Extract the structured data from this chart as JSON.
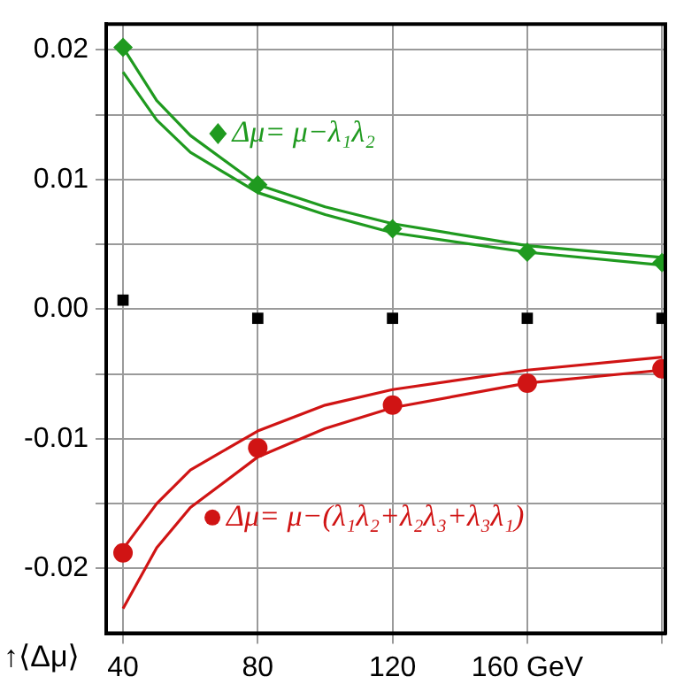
{
  "chart_data": {
    "type": "line",
    "ylabel": "↑⟨Δμ⟩",
    "xlim": [
      35,
      201
    ],
    "ylim": [
      -0.025,
      0.022
    ],
    "xticks": [
      40,
      80,
      120,
      {
        "value": 160,
        "label": "160 GeV"
      },
      {
        "value": 200,
        "label": null
      }
    ],
    "yticks": [
      {
        "value": -0.02,
        "label": "-0.02"
      },
      {
        "value": -0.015,
        "label": null
      },
      {
        "value": -0.01,
        "label": "-0.01"
      },
      {
        "value": -0.005,
        "label": null
      },
      {
        "value": 0,
        "label": "0.00"
      },
      {
        "value": 0.005,
        "label": null
      },
      {
        "value": 0.01,
        "label": "0.01"
      },
      {
        "value": 0.015,
        "label": null
      },
      {
        "value": 0.02,
        "label": "0.02"
      }
    ],
    "grid": true,
    "legend": "center left",
    "line_style": "solid",
    "series": [
      {
        "type": "scatter",
        "marker": "diamond",
        "name": "Δμ= μ−λ₁λ₂",
        "color": "#1f9a1f",
        "x": [
          40,
          80,
          120,
          160,
          200
        ],
        "values": [
          0.0202,
          0.0096,
          0.0062,
          0.0044,
          0.0036
        ]
      },
      {
        "type": "line",
        "marker": "none",
        "color": "#1f9a1f",
        "x": [
          40,
          50,
          60,
          80,
          100,
          120,
          160,
          200
        ],
        "values": [
          0.0202,
          0.0161,
          0.0134,
          0.0096,
          0.0079,
          0.0066,
          0.0049,
          0.004
        ]
      },
      {
        "type": "line",
        "marker": "none",
        "color": "#1f9a1f",
        "x": [
          40,
          50,
          60,
          80,
          100,
          120,
          160,
          200
        ],
        "values": [
          0.0183,
          0.0146,
          0.0121,
          0.009,
          0.0073,
          0.0059,
          0.0044,
          0.0034
        ]
      },
      {
        "type": "scatter",
        "marker": "square",
        "color": "#000000",
        "x": [
          40,
          80,
          120,
          160,
          200
        ],
        "values": [
          0.0007,
          -0.0007,
          -0.0007,
          -0.0007,
          -0.0007
        ]
      },
      {
        "type": "scatter",
        "marker": "circle",
        "name": "Δμ= μ−(λ₁λ₂+λ₂λ₃+λ₃λ₁)",
        "color": "#d01414",
        "x": [
          40,
          80,
          120,
          160,
          200
        ],
        "values": [
          -0.0188,
          -0.0107,
          -0.0074,
          -0.0057,
          -0.0046
        ]
      },
      {
        "type": "line",
        "marker": "none",
        "color": "#d01414",
        "x": [
          40,
          50,
          60,
          80,
          100,
          120,
          160,
          200
        ],
        "values": [
          -0.0185,
          -0.015,
          -0.0124,
          -0.0094,
          -0.0074,
          -0.0062,
          -0.0047,
          -0.0037
        ]
      },
      {
        "type": "line",
        "marker": "none",
        "color": "#d01414",
        "x": [
          40,
          50,
          60,
          80,
          100,
          120,
          160,
          200
        ],
        "values": [
          -0.0231,
          -0.0184,
          -0.0153,
          -0.0114,
          -0.0092,
          -0.0076,
          -0.0057,
          -0.0047
        ]
      }
    ]
  }
}
